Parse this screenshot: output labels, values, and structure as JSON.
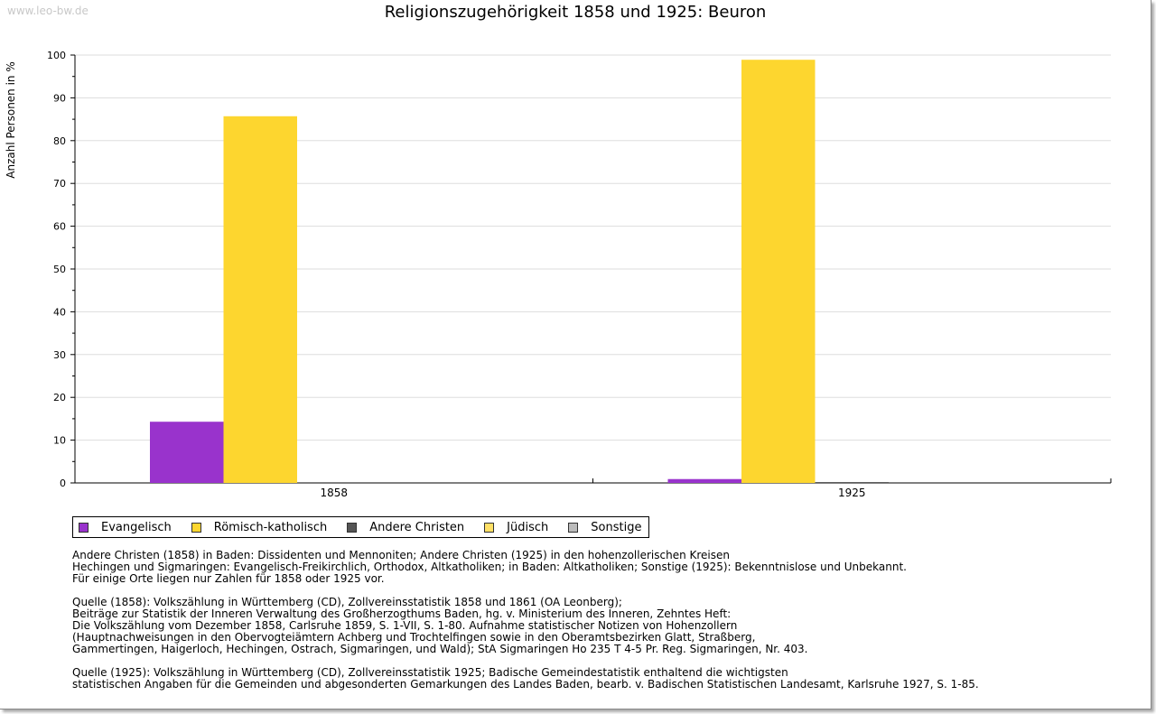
{
  "watermark": "www.leo-bw.de",
  "chart_data": {
    "type": "bar",
    "title": "Religionszugehörigkeit 1858 und 1925: Beuron",
    "ylabel": "Anzahl Personen in %",
    "xlabel": "",
    "ylim": [
      0,
      100
    ],
    "yticks": [
      0,
      10,
      20,
      30,
      40,
      50,
      60,
      70,
      80,
      90,
      100
    ],
    "grid": true,
    "legend_position": "bottom",
    "categories": [
      "1858",
      "1925"
    ],
    "series": [
      {
        "name": "Evangelisch",
        "color": "#9933cc",
        "values": [
          14.3,
          0.9
        ]
      },
      {
        "name": "Römisch-katholisch",
        "color": "#fdd62f",
        "values": [
          85.7,
          98.9
        ]
      },
      {
        "name": "Andere Christen",
        "color": "#555555",
        "values": [
          0,
          0.2
        ]
      },
      {
        "name": "Jüdisch",
        "color": "#ffe066",
        "values": [
          0,
          0
        ]
      },
      {
        "name": "Sonstige",
        "color": "#bbbbbb",
        "values": [
          0,
          0
        ]
      }
    ]
  },
  "notes": [
    "Andere Christen (1858) in Baden: Dissidenten und Mennoniten; Andere Christen (1925) in den hohenzollerischen Kreisen\nHechingen und Sigmaringen: Evangelisch-Freikirchlich, Orthodox, Altkatholiken; in Baden: Altkatholiken; Sonstige (1925): Bekenntnislose und Unbekannt.\nFür einige Orte liegen nur Zahlen für 1858 oder 1925 vor.",
    "Quelle (1858): Volkszählung in Württemberg (CD), Zollvereinsstatistik 1858 und 1861 (OA Leonberg);\nBeiträge zur Statistik der Inneren Verwaltung des Großherzogthums Baden, hg. v. Ministerium des Inneren, Zehntes Heft:\nDie Volkszählung vom Dezember 1858, Carlsruhe 1859, S. 1-VII, S. 1-80. Aufnahme statistischer Notizen von Hohenzollern\n(Hauptnachweisungen in den Obervogteiämtern Achberg und Trochtelfingen sowie in den Oberamtsbezirken Glatt, Straßberg,\nGammertingen, Haigerloch, Hechingen, Ostrach, Sigmaringen, und Wald); StA Sigmaringen Ho 235 T 4-5 Pr. Reg. Sigmaringen, Nr. 403.",
    "Quelle (1925): Volkszählung in Württemberg (CD), Zollvereinsstatistik 1925; Badische Gemeindestatistik enthaltend die wichtigsten\nstatistischen Angaben für die Gemeinden und abgesonderten Gemarkungen des Landes Baden, bearb. v. Badischen Statistischen Landesamt, Karlsruhe 1927, S. 1-85."
  ]
}
